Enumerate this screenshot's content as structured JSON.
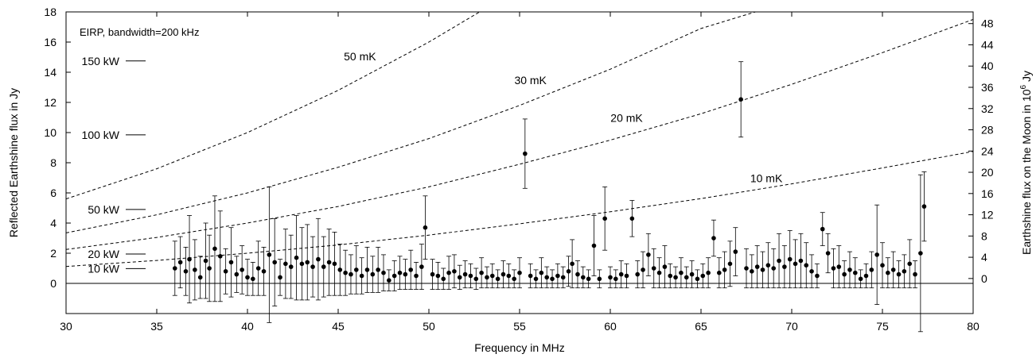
{
  "chart_data": {
    "type": "scatter",
    "xlabel": "Frequency in MHz",
    "ylabel": "Reflected Earthshine flux in Jy",
    "y2label_prefix": "Earthshine flux on the Moon in 10",
    "y2label_exp": "6",
    "y2label_suffix": " Jy",
    "xlim": [
      30,
      80
    ],
    "ylim": [
      -2,
      18
    ],
    "y2lim": [
      -6.6,
      50.2
    ],
    "xticks": [
      30,
      35,
      40,
      45,
      50,
      55,
      60,
      65,
      70,
      75,
      80
    ],
    "yticks": [
      0,
      2,
      4,
      6,
      8,
      10,
      12,
      14,
      16,
      18
    ],
    "y2ticks": [
      0,
      4,
      8,
      12,
      16,
      20,
      24,
      28,
      32,
      36,
      40,
      44,
      48
    ],
    "annotation": "EIRP, bandwidth=200 kHz",
    "eirp_markers": [
      {
        "label": "150 kW",
        "y": 14.75
      },
      {
        "label": "100 kW",
        "y": 9.85
      },
      {
        "label": "50 kW",
        "y": 4.9
      },
      {
        "label": "20 kW",
        "y": 1.95
      },
      {
        "label": "10 kW",
        "y": 0.98
      }
    ],
    "curves": [
      {
        "label": "50 mK",
        "label_x": 46.2,
        "label_y": 14.8,
        "points": [
          [
            30,
            5.6
          ],
          [
            35,
            7.6
          ],
          [
            40,
            10.0
          ],
          [
            45,
            12.8
          ],
          [
            50,
            16.0
          ],
          [
            52.8,
            18.0
          ]
        ]
      },
      {
        "label": "30 mK",
        "label_x": 55.6,
        "label_y": 13.2,
        "points": [
          [
            30,
            3.35
          ],
          [
            35,
            4.55
          ],
          [
            40,
            6.0
          ],
          [
            45,
            7.7
          ],
          [
            50,
            9.6
          ],
          [
            55,
            11.8
          ],
          [
            60,
            14.2
          ],
          [
            65,
            16.9
          ],
          [
            68,
            18.0
          ]
        ]
      },
      {
        "label": "20 mK",
        "label_x": 60.9,
        "label_y": 10.7,
        "points": [
          [
            30,
            2.25
          ],
          [
            35,
            3.05
          ],
          [
            40,
            4.0
          ],
          [
            45,
            5.1
          ],
          [
            50,
            6.4
          ],
          [
            55,
            7.9
          ],
          [
            60,
            9.5
          ],
          [
            65,
            11.25
          ],
          [
            70,
            13.2
          ],
          [
            75,
            15.3
          ],
          [
            80,
            17.5
          ]
        ]
      },
      {
        "label": "10 mK",
        "label_x": 68.6,
        "label_y": 6.7,
        "points": [
          [
            30,
            1.12
          ],
          [
            35,
            1.52
          ],
          [
            40,
            2.0
          ],
          [
            45,
            2.55
          ],
          [
            50,
            3.2
          ],
          [
            55,
            3.95
          ],
          [
            60,
            4.75
          ],
          [
            65,
            5.62
          ],
          [
            70,
            6.6
          ],
          [
            75,
            7.65
          ],
          [
            80,
            8.75
          ]
        ]
      }
    ],
    "measurements": [
      [
        36.0,
        1.0,
        1.8
      ],
      [
        36.3,
        1.4,
        1.7
      ],
      [
        36.6,
        0.8,
        1.6
      ],
      [
        36.8,
        1.6,
        2.9
      ],
      [
        37.1,
        0.9,
        2.0
      ],
      [
        37.4,
        0.4,
        1.4
      ],
      [
        37.7,
        1.5,
        2.5
      ],
      [
        37.9,
        1.0,
        2.2
      ],
      [
        38.2,
        2.3,
        3.5
      ],
      [
        38.5,
        1.8,
        3.0
      ],
      [
        38.8,
        0.8,
        1.5
      ],
      [
        39.1,
        1.4,
        2.3
      ],
      [
        39.4,
        0.6,
        1.2
      ],
      [
        39.7,
        0.9,
        1.6
      ],
      [
        40.0,
        0.4,
        1.2
      ],
      [
        40.3,
        0.3,
        1.1
      ],
      [
        40.6,
        1.0,
        1.8
      ],
      [
        40.9,
        0.8,
        1.6
      ],
      [
        41.2,
        1.9,
        4.5
      ],
      [
        41.5,
        1.4,
        2.9
      ],
      [
        41.8,
        0.4,
        1.2
      ],
      [
        42.1,
        1.3,
        2.3
      ],
      [
        42.4,
        1.1,
        2.1
      ],
      [
        42.7,
        1.7,
        2.8
      ],
      [
        43.0,
        1.3,
        2.4
      ],
      [
        43.3,
        1.4,
        2.5
      ],
      [
        43.6,
        1.1,
        2.0
      ],
      [
        43.9,
        1.6,
        2.7
      ],
      [
        44.2,
        1.1,
        2.0
      ],
      [
        44.5,
        1.4,
        2.2
      ],
      [
        44.8,
        1.3,
        2.1
      ],
      [
        45.1,
        0.9,
        1.7
      ],
      [
        45.4,
        0.7,
        1.5
      ],
      [
        45.7,
        0.6,
        1.3
      ],
      [
        46.0,
        0.9,
        1.6
      ],
      [
        46.3,
        0.5,
        1.2
      ],
      [
        46.6,
        0.9,
        1.5
      ],
      [
        46.9,
        0.6,
        1.2
      ],
      [
        47.2,
        0.9,
        1.5
      ],
      [
        47.5,
        0.7,
        1.2
      ],
      [
        47.8,
        0.2,
        0.7
      ],
      [
        48.1,
        0.5,
        1.0
      ],
      [
        48.4,
        0.7,
        1.1
      ],
      [
        48.7,
        0.6,
        1.0
      ],
      [
        49.0,
        0.9,
        1.3
      ],
      [
        49.3,
        0.5,
        0.9
      ],
      [
        49.6,
        1.1,
        1.5
      ],
      [
        49.8,
        3.7,
        2.1
      ],
      [
        50.2,
        0.6,
        1.0
      ],
      [
        50.5,
        0.5,
        0.9
      ],
      [
        50.8,
        0.3,
        0.7
      ],
      [
        51.1,
        0.7,
        1.1
      ],
      [
        51.4,
        0.8,
        1.1
      ],
      [
        51.7,
        0.4,
        0.8
      ],
      [
        52.0,
        0.6,
        0.9
      ],
      [
        52.3,
        0.5,
        0.8
      ],
      [
        52.6,
        0.3,
        0.7
      ],
      [
        52.9,
        0.7,
        1.0
      ],
      [
        53.2,
        0.4,
        0.7
      ],
      [
        53.5,
        0.5,
        0.8
      ],
      [
        53.8,
        0.3,
        0.6
      ],
      [
        54.1,
        0.6,
        0.9
      ],
      [
        54.4,
        0.5,
        0.8
      ],
      [
        54.7,
        0.3,
        0.6
      ],
      [
        55.0,
        0.7,
        1.0
      ],
      [
        55.3,
        8.6,
        2.3
      ],
      [
        55.6,
        0.5,
        0.8
      ],
      [
        55.9,
        0.3,
        0.6
      ],
      [
        56.2,
        0.7,
        1.0
      ],
      [
        56.5,
        0.4,
        0.7
      ],
      [
        56.8,
        0.3,
        0.6
      ],
      [
        57.1,
        0.5,
        0.8
      ],
      [
        57.4,
        0.4,
        0.7
      ],
      [
        57.7,
        0.8,
        1.0
      ],
      [
        57.9,
        1.3,
        1.6
      ],
      [
        58.2,
        0.6,
        0.9
      ],
      [
        58.5,
        0.4,
        0.7
      ],
      [
        58.8,
        0.3,
        0.6
      ],
      [
        59.1,
        2.5,
        2.0
      ],
      [
        59.4,
        0.3,
        0.6
      ],
      [
        59.7,
        4.3,
        2.1
      ],
      [
        60.0,
        0.4,
        0.7
      ],
      [
        60.3,
        0.3,
        0.6
      ],
      [
        60.6,
        0.6,
        0.9
      ],
      [
        60.9,
        0.5,
        0.8
      ],
      [
        61.2,
        4.3,
        1.2
      ],
      [
        61.5,
        0.6,
        0.9
      ],
      [
        61.8,
        0.9,
        1.2
      ],
      [
        62.1,
        1.9,
        1.4
      ],
      [
        62.4,
        1.0,
        1.3
      ],
      [
        62.7,
        0.7,
        1.0
      ],
      [
        63.0,
        1.1,
        1.4
      ],
      [
        63.3,
        0.5,
        0.8
      ],
      [
        63.6,
        0.4,
        0.7
      ],
      [
        63.9,
        0.7,
        1.0
      ],
      [
        64.2,
        0.4,
        0.7
      ],
      [
        64.5,
        0.6,
        0.9
      ],
      [
        64.8,
        0.3,
        0.6
      ],
      [
        65.1,
        0.5,
        0.8
      ],
      [
        65.4,
        0.7,
        1.0
      ],
      [
        65.7,
        3.0,
        1.2
      ],
      [
        66.0,
        0.7,
        1.0
      ],
      [
        66.3,
        0.9,
        1.2
      ],
      [
        66.6,
        1.3,
        1.5
      ],
      [
        66.9,
        2.1,
        1.6
      ],
      [
        67.2,
        12.2,
        2.5
      ],
      [
        67.5,
        1.0,
        1.3
      ],
      [
        67.8,
        0.8,
        1.1
      ],
      [
        68.1,
        1.1,
        1.4
      ],
      [
        68.4,
        0.9,
        1.2
      ],
      [
        68.7,
        1.2,
        1.5
      ],
      [
        69.0,
        1.0,
        1.3
      ],
      [
        69.3,
        1.5,
        1.8
      ],
      [
        69.6,
        1.1,
        1.4
      ],
      [
        69.9,
        1.6,
        1.9
      ],
      [
        70.2,
        1.3,
        1.6
      ],
      [
        70.5,
        1.5,
        1.8
      ],
      [
        70.8,
        1.2,
        1.5
      ],
      [
        71.1,
        0.8,
        1.1
      ],
      [
        71.4,
        0.5,
        0.8
      ],
      [
        71.7,
        3.6,
        1.1
      ],
      [
        72.0,
        2.0,
        1.3
      ],
      [
        72.3,
        1.0,
        1.3
      ],
      [
        72.6,
        1.1,
        1.4
      ],
      [
        72.9,
        0.6,
        0.9
      ],
      [
        73.2,
        0.9,
        1.2
      ],
      [
        73.5,
        0.7,
        1.0
      ],
      [
        73.8,
        0.3,
        0.6
      ],
      [
        74.1,
        0.5,
        0.8
      ],
      [
        74.4,
        0.9,
        1.2
      ],
      [
        74.7,
        1.9,
        3.3
      ],
      [
        75.0,
        1.2,
        1.5
      ],
      [
        75.3,
        0.7,
        1.0
      ],
      [
        75.6,
        0.9,
        1.2
      ],
      [
        75.9,
        0.6,
        0.9
      ],
      [
        76.2,
        0.8,
        1.1
      ],
      [
        76.5,
        1.3,
        1.6
      ],
      [
        76.8,
        0.6,
        0.9
      ],
      [
        77.1,
        2.0,
        5.2
      ],
      [
        77.3,
        5.1,
        2.3
      ]
    ]
  }
}
